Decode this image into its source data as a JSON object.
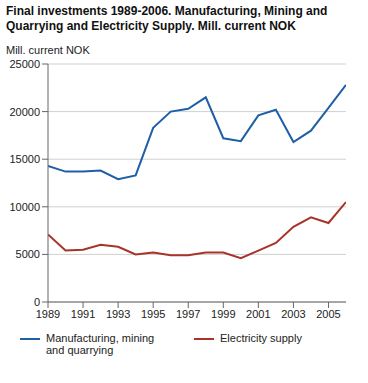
{
  "chart_data": {
    "type": "line",
    "title": "Final investments 1989-2006. Manufacturing, Mining and Quarrying and Electricity Supply. Mill. current NOK",
    "y_label": "Mill. current NOK",
    "x": [
      1989,
      1990,
      1991,
      1992,
      1993,
      1994,
      1995,
      1996,
      1997,
      1998,
      1999,
      2000,
      2001,
      2002,
      2003,
      2004,
      2005,
      2006
    ],
    "series": [
      {
        "name": "Manufacturing, mining and quarrying",
        "color": "#1f5fa6",
        "values": [
          14300,
          13700,
          13700,
          13800,
          12900,
          13300,
          18300,
          20000,
          20300,
          21500,
          17200,
          16900,
          19600,
          20200,
          16800,
          18000,
          20400,
          22800
        ]
      },
      {
        "name": "Electricity supply",
        "color": "#a8332a",
        "values": [
          7100,
          5400,
          5500,
          6000,
          5800,
          5000,
          5200,
          4900,
          4900,
          5200,
          5200,
          4600,
          5400,
          6200,
          7900,
          8900,
          8300,
          10500
        ]
      }
    ],
    "xlim": [
      1989,
      2006
    ],
    "xticks": [
      1989,
      1991,
      1993,
      1995,
      1997,
      1999,
      2001,
      2003,
      2005
    ],
    "ylim": [
      0,
      25000
    ],
    "yticks": [
      0,
      5000,
      10000,
      15000,
      20000,
      25000
    ],
    "grid": true,
    "legend": "bottom"
  }
}
